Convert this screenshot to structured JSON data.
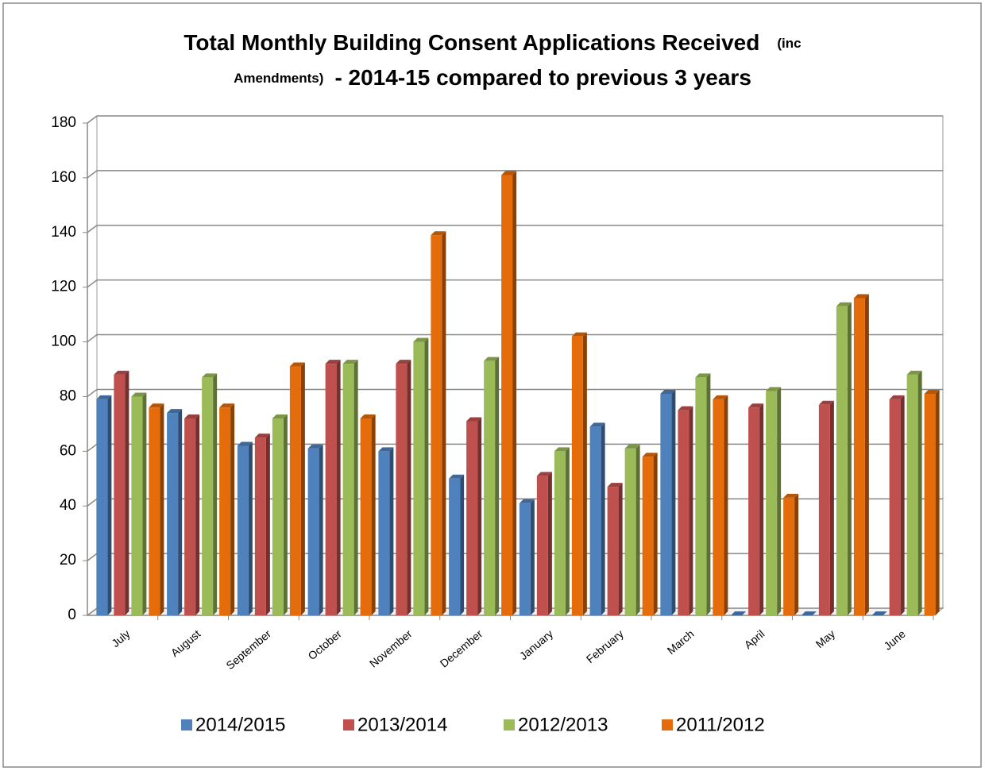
{
  "chart_data": {
    "type": "bar3d",
    "title_lines": [
      [
        "Total Monthly Building Consent Applications Received",
        "(inc"
      ],
      [
        "Amendments)",
        "- 2014-15 compared to previous 3 years"
      ]
    ],
    "categories": [
      "July",
      "August",
      "September",
      "October",
      "November",
      "December",
      "January",
      "February",
      "March",
      "April",
      "May",
      "June"
    ],
    "series": [
      {
        "name": "2014/2015",
        "color": "#4f81bd",
        "values": [
          79,
          74,
          62,
          61,
          60,
          50,
          41,
          69,
          81,
          0,
          0,
          0
        ]
      },
      {
        "name": "2013/2014",
        "color": "#c0504d",
        "values": [
          88,
          72,
          65,
          92,
          92,
          71,
          51,
          47,
          75,
          76,
          77,
          79
        ]
      },
      {
        "name": "2012/2013",
        "color": "#9bbb59",
        "values": [
          80,
          87,
          72,
          92,
          100,
          93,
          60,
          61,
          87,
          82,
          113,
          88
        ]
      },
      {
        "name": "2011/2012",
        "color": "#e46c0a",
        "values": [
          76,
          76,
          91,
          72,
          139,
          161,
          102,
          58,
          79,
          43,
          116,
          81
        ]
      }
    ],
    "ylim": [
      0,
      180
    ],
    "yticks": [
      0,
      20,
      40,
      60,
      80,
      100,
      120,
      140,
      160,
      180
    ],
    "grid": true,
    "legend": "bottom"
  }
}
